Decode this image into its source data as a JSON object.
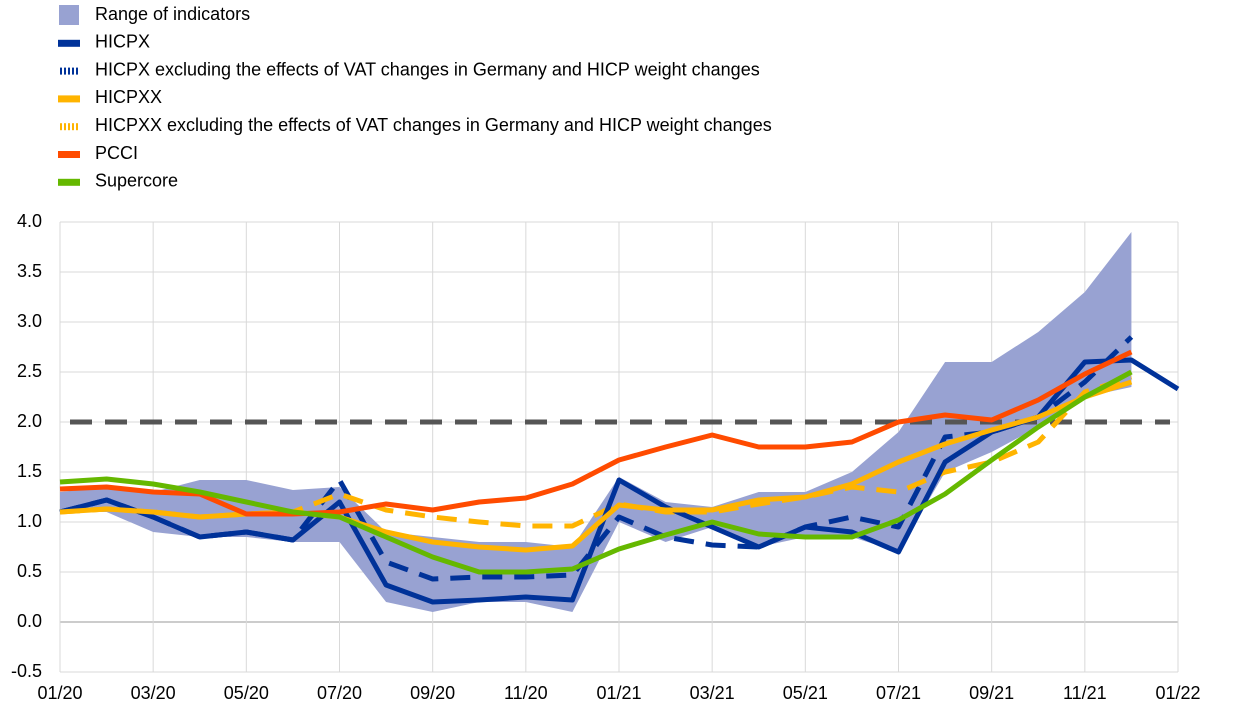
{
  "chart_data": {
    "type": "line",
    "categories": [
      "01/20",
      null,
      "03/20",
      null,
      "05/20",
      null,
      "07/20",
      null,
      "09/20",
      null,
      "11/20",
      null,
      "01/21",
      null,
      "03/21",
      null,
      "05/21",
      null,
      "07/21",
      null,
      "09/21",
      null,
      "11/21",
      null,
      "01/22"
    ],
    "band": {
      "name": "Range of indicators",
      "color": "#98a2d2",
      "upper": [
        1.3,
        1.35,
        1.3,
        1.42,
        1.42,
        1.32,
        1.35,
        0.9,
        0.85,
        0.8,
        0.8,
        0.75,
        1.45,
        1.2,
        1.15,
        1.3,
        1.3,
        1.5,
        1.9,
        2.6,
        2.6,
        2.9,
        3.3,
        3.9,
        null
      ],
      "lower": [
        1.1,
        1.1,
        0.9,
        0.85,
        0.85,
        0.8,
        0.8,
        0.2,
        0.1,
        0.2,
        0.2,
        0.1,
        1.0,
        0.8,
        0.95,
        0.75,
        0.85,
        0.85,
        0.7,
        1.5,
        1.7,
        1.95,
        2.25,
        2.35,
        null
      ]
    },
    "series": [
      {
        "name": "HICPX",
        "color": "#003299",
        "dashed": false,
        "values": [
          1.1,
          1.22,
          1.05,
          0.85,
          0.9,
          0.82,
          1.2,
          0.37,
          0.2,
          0.22,
          0.25,
          0.22,
          1.42,
          1.15,
          0.95,
          0.75,
          0.95,
          0.9,
          0.7,
          1.6,
          1.9,
          2.05,
          2.6,
          2.62,
          2.33
        ]
      },
      {
        "name": "HICPX excluding the effects of VAT changes in Germany and HICP weight changes",
        "color": "#003299",
        "dashed": true,
        "values": [
          1.1,
          1.22,
          1.05,
          0.85,
          0.9,
          0.82,
          1.42,
          0.6,
          0.43,
          0.45,
          0.45,
          0.47,
          1.05,
          0.85,
          0.77,
          0.75,
          0.95,
          1.05,
          0.95,
          1.85,
          1.9,
          2.05,
          2.4,
          2.85,
          null
        ]
      },
      {
        "name": "HICPXX",
        "color": "#ffb400",
        "dashed": false,
        "values": [
          1.1,
          1.13,
          1.1,
          1.05,
          1.08,
          1.1,
          1.05,
          0.9,
          0.8,
          0.75,
          0.72,
          0.76,
          1.17,
          1.12,
          1.12,
          1.22,
          1.25,
          1.38,
          1.6,
          1.78,
          1.92,
          2.05,
          2.25,
          2.4,
          null
        ]
      },
      {
        "name": "HICPXX excluding the effects of VAT changes in Germany and HICP weight changes",
        "color": "#ffb400",
        "dashed": true,
        "values": [
          1.1,
          1.13,
          1.1,
          1.05,
          1.08,
          1.1,
          1.28,
          1.12,
          1.05,
          1.0,
          0.96,
          0.96,
          1.18,
          1.1,
          1.1,
          1.18,
          1.25,
          1.35,
          1.3,
          1.5,
          1.6,
          1.8,
          2.3,
          2.45,
          null
        ]
      },
      {
        "name": "PCCI",
        "color": "#ff4b00",
        "dashed": false,
        "values": [
          1.33,
          1.35,
          1.3,
          1.28,
          1.08,
          1.08,
          1.1,
          1.18,
          1.12,
          1.2,
          1.24,
          1.38,
          1.62,
          1.75,
          1.87,
          1.75,
          1.75,
          1.8,
          2.0,
          2.07,
          2.02,
          2.22,
          2.48,
          2.7,
          null
        ]
      },
      {
        "name": "Supercore",
        "color": "#65b800",
        "dashed": false,
        "values": [
          1.4,
          1.43,
          1.38,
          1.3,
          1.2,
          1.1,
          1.05,
          0.85,
          0.65,
          0.5,
          0.5,
          0.53,
          0.73,
          0.87,
          1.0,
          0.88,
          0.85,
          0.85,
          1.02,
          1.28,
          1.62,
          1.95,
          2.25,
          2.5,
          null
        ]
      }
    ],
    "reference_line": {
      "value": 2,
      "color": "#555555"
    },
    "ylim": [
      -0.5,
      4
    ],
    "yticks": [
      -0.5,
      {
        "value": 0,
        "label": "0.0"
      },
      0.5,
      {
        "value": 1,
        "label": "1.0"
      },
      1.5,
      {
        "value": 2,
        "label": "2.0"
      },
      2.5,
      {
        "value": 3,
        "label": "3.0"
      },
      3.5,
      {
        "value": 4,
        "label": "4.0"
      }
    ],
    "grid": true
  }
}
